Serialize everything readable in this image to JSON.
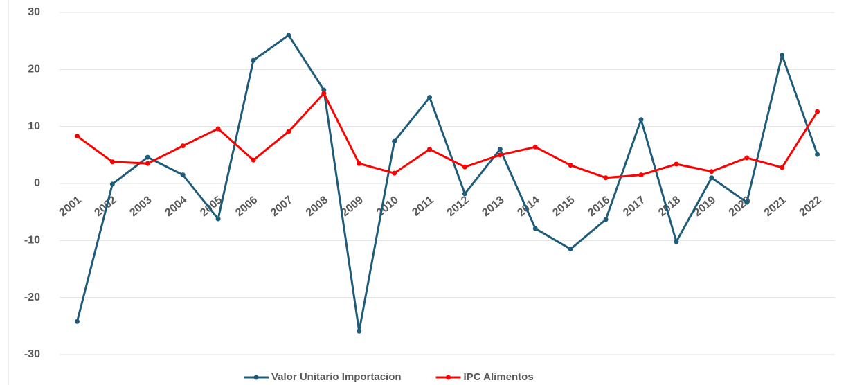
{
  "chart_data": {
    "type": "line",
    "categories": [
      "2001",
      "2002",
      "2003",
      "2004",
      "2005",
      "2006",
      "2007",
      "2008",
      "2009",
      "2010",
      "2011",
      "2012",
      "2013",
      "2014",
      "2015",
      "2016",
      "2017",
      "2018",
      "2019",
      "2020",
      "2021",
      "2022"
    ],
    "series": [
      {
        "name": "Valor Unitario Importacion",
        "color": "#1f5c7a",
        "values": [
          -24.2,
          -0.1,
          4.6,
          1.5,
          -6.2,
          21.6,
          26,
          16.4,
          -25.9,
          7.4,
          15.1,
          -1.8,
          6,
          -7.9,
          -11.5,
          -6.3,
          11.2,
          -10.2,
          1,
          -3.3,
          22.5,
          5.1
        ]
      },
      {
        "name": "IPC Alimentos",
        "color": "#ff0000",
        "values": [
          8.3,
          3.8,
          3.5,
          6.6,
          9.6,
          4.1,
          9.1,
          15.8,
          3.5,
          1.8,
          6,
          2.9,
          5,
          6.4,
          3.2,
          1,
          1.5,
          3.4,
          2.1,
          4.5,
          2.8,
          12.6
        ]
      }
    ],
    "ylim": [
      -30,
      30
    ],
    "yticks": [
      -30,
      -20,
      -10,
      0,
      10,
      20,
      30
    ],
    "grid": true,
    "legend": "bottom"
  }
}
